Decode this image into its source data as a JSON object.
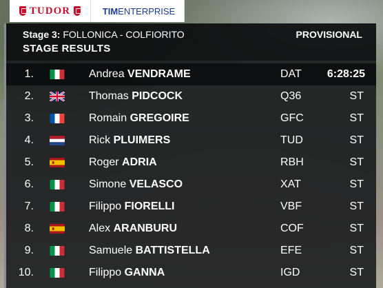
{
  "sponsors": {
    "tudor": "TUDOR",
    "tim_prefix": "TIM",
    "tim_suffix": "ENTERPRISE"
  },
  "header": {
    "stage_label": "Stage 3:",
    "route": "FOLLONICA - COLFIORITO",
    "title": "STAGE RESULTS",
    "status": "PROVISIONAL"
  },
  "flag_colors": {
    "italy": [
      "#009246",
      "#ffffff",
      "#ce2b37"
    ],
    "france": [
      "#0055a4",
      "#ffffff",
      "#ef4135"
    ],
    "netherlands": [
      "#ae1c28",
      "#ffffff",
      "#21468b"
    ],
    "spain": [
      "#aa151b",
      "#f1bf00",
      "#aa151b"
    ],
    "uk": [
      "#012169",
      "#ffffff",
      "#c8102e"
    ]
  },
  "results": [
    {
      "pos": "1.",
      "flag": "italy",
      "first": "Andrea",
      "last": "VENDRAME",
      "team": "DAT",
      "time": "6:28:25"
    },
    {
      "pos": "2.",
      "flag": "uk",
      "first": "Thomas",
      "last": "PIDCOCK",
      "team": "Q36",
      "time": "ST"
    },
    {
      "pos": "3.",
      "flag": "france",
      "first": "Romain",
      "last": "GREGOIRE",
      "team": "GFC",
      "time": "ST"
    },
    {
      "pos": "4.",
      "flag": "netherlands",
      "first": "Rick",
      "last": "PLUIMERS",
      "team": "TUD",
      "time": "ST"
    },
    {
      "pos": "5.",
      "flag": "spain",
      "first": "Roger",
      "last": "ADRIA",
      "team": "RBH",
      "time": "ST"
    },
    {
      "pos": "6.",
      "flag": "italy",
      "first": "Simone",
      "last": "VELASCO",
      "team": "XAT",
      "time": "ST"
    },
    {
      "pos": "7.",
      "flag": "italy",
      "first": "Filippo",
      "last": "FIORELLI",
      "team": "VBF",
      "time": "ST"
    },
    {
      "pos": "8.",
      "flag": "spain",
      "first": "Alex",
      "last": "ARANBURU",
      "team": "COF",
      "time": "ST"
    },
    {
      "pos": "9.",
      "flag": "italy",
      "first": "Samuele",
      "last": "BATTISTELLA",
      "team": "EFE",
      "time": "ST"
    },
    {
      "pos": "10.",
      "flag": "italy",
      "first": "Filippo",
      "last": "GANNA",
      "team": "IGD",
      "time": "ST"
    }
  ]
}
